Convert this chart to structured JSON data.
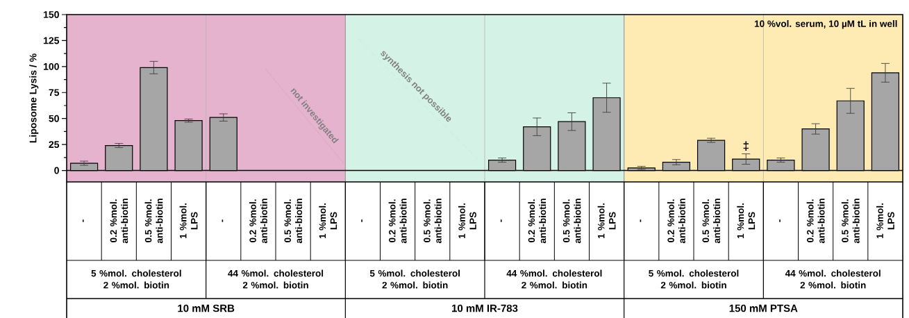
{
  "chart_data": {
    "type": "bar",
    "ylabel": "Liposome Lysis / %",
    "categories": [
      "-",
      "0.2 %mol. anti-biotin",
      "0.5 %mol. anti-biotin",
      "1 %mol. LPS",
      "-",
      "0.2 %mol. anti-biotin",
      "0.5 %mol. anti-biotin",
      "1 %mol. LPS",
      "-",
      "0.2 %mol. anti-biotin",
      "0.5 %mol. anti-biotin",
      "1 %mol. LPS",
      "-",
      "0.2 %mol. anti-biotin",
      "0.5 %mol. anti-biotin",
      "1 %mol. LPS",
      "-",
      "0.2 %mol. anti-biotin",
      "0.5 %mol. anti-biotin",
      "1 %mol. LPS",
      "-",
      "0.2 %mol. anti-biotin",
      "0.5 %mol. anti-biotin",
      "1 %mol. LPS"
    ],
    "values": [
      7,
      24,
      99,
      48,
      51,
      null,
      null,
      null,
      null,
      null,
      null,
      null,
      10,
      42,
      47,
      70,
      2.5,
      8,
      29,
      11,
      10,
      40,
      67,
      94
    ],
    "errors": [
      2,
      2,
      6,
      1.5,
      3.5,
      null,
      null,
      null,
      null,
      null,
      null,
      null,
      2,
      8.5,
      8.5,
      14,
      1.5,
      2.5,
      2,
      5,
      2,
      5,
      12,
      9
    ],
    "value_labels": [
      null,
      null,
      null,
      null,
      null,
      null,
      null,
      null,
      null,
      null,
      null,
      null,
      null,
      null,
      null,
      null,
      null,
      null,
      null,
      "‡",
      null,
      null,
      null,
      null
    ],
    "color": "#a6a6a6",
    "ylim": [
      -11,
      150
    ],
    "yticks": [
      0,
      25,
      50,
      75,
      100,
      125,
      150
    ],
    "annotations": [
      "not investigated",
      "synthesis not possible",
      "10 %vol. serum, 10 µM tL in well",
      "5 %mol. cholesterol 2 %mol. biotin",
      "44 %mol. cholesterol 2 %mol. biotin",
      "5 %mol. cholesterol 2 %mol. biotin",
      "44 %mol. cholesterol 2 %mol. biotin",
      "5 %mol. cholesterol 2 %mol. biotin",
      "44 %mol. cholesterol 2 %mol. biotin",
      "10 mM SRB",
      "10 mM IR-783",
      "150 mM PTSA"
    ]
  }
}
